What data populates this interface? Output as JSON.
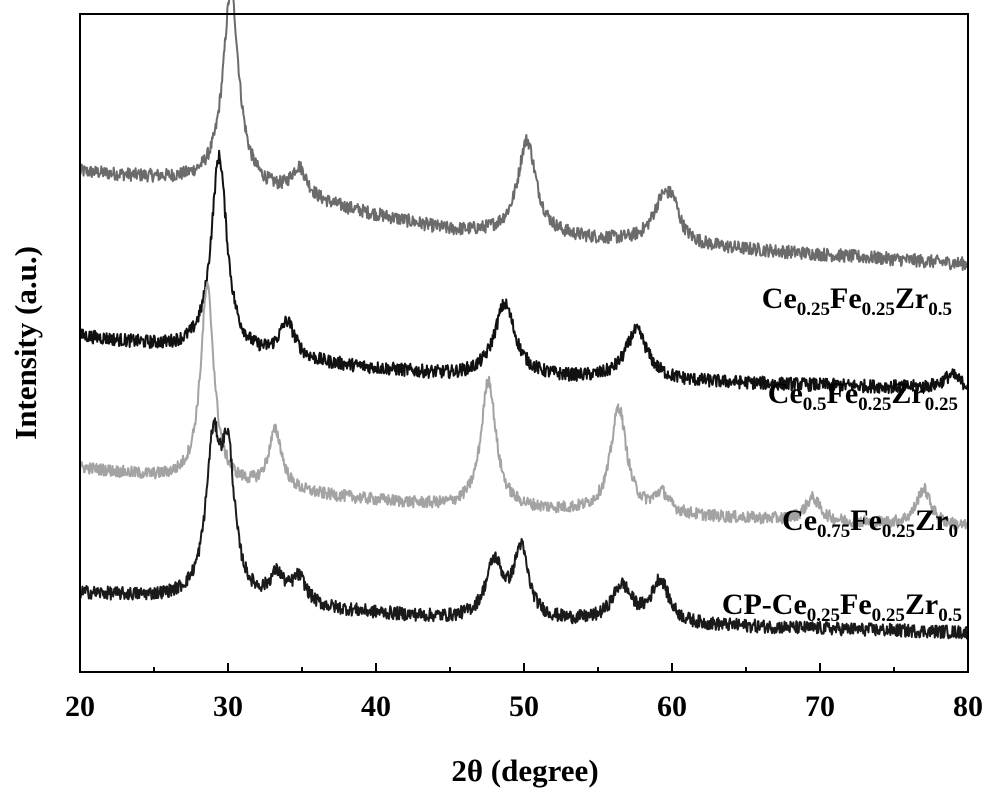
{
  "chart_data": {
    "type": "line",
    "title": "",
    "xlabel": "2θ (degree)",
    "ylabel": "Intensity (a.u.)",
    "xlim": [
      20,
      80
    ],
    "ylim": [
      0,
      100
    ],
    "x_ticks": [
      20,
      30,
      40,
      50,
      60,
      70,
      80
    ],
    "x_tick_labels": [
      "20",
      "30",
      "40",
      "50",
      "60",
      "70",
      "80"
    ],
    "y_tick_labels_shown": false,
    "grid": false,
    "legend": "inline labels at right of each curve",
    "series": [
      {
        "name": "Ce0.25Fe0.25Zr0.5",
        "label_parts": [
          {
            "text": "Ce"
          },
          {
            "text": "0.25",
            "sub": true
          },
          {
            "text": "Fe"
          },
          {
            "text": "0.25",
            "sub": true
          },
          {
            "text": "Zr"
          },
          {
            "text": "0.5",
            "sub": true
          }
        ],
        "color": "#6b6b6b",
        "baseline": [
          [
            20,
            76
          ],
          [
            30,
            74
          ],
          [
            45,
            67
          ],
          [
            80,
            62
          ]
        ],
        "peaks": [
          {
            "x": 30.2,
            "h": 29.5,
            "w": 0.65
          },
          {
            "x": 34.8,
            "h": 4.5,
            "w": 0.65
          },
          {
            "x": 50.2,
            "h": 14.5,
            "w": 0.75
          },
          {
            "x": 59.4,
            "h": 6.5,
            "w": 0.85
          },
          {
            "x": 60.1,
            "h": 3.5,
            "w": 0.5
          }
        ],
        "noise": 1.0
      },
      {
        "name": "Ce0.5Fe0.25Zr0.25",
        "label_parts": [
          {
            "text": "Ce"
          },
          {
            "text": "0.5",
            "sub": true
          },
          {
            "text": "Fe"
          },
          {
            "text": "0.25",
            "sub": true
          },
          {
            "text": "Zr"
          },
          {
            "text": "0.25",
            "sub": true
          }
        ],
        "color": "#111111",
        "baseline": [
          [
            20,
            51
          ],
          [
            30,
            48
          ],
          [
            45,
            45
          ],
          [
            80,
            43
          ]
        ],
        "peaks": [
          {
            "x": 29.4,
            "h": 30.0,
            "w": 0.65
          },
          {
            "x": 34.0,
            "h": 5.5,
            "w": 0.65
          },
          {
            "x": 48.7,
            "h": 11.0,
            "w": 0.85
          },
          {
            "x": 57.6,
            "h": 7.5,
            "w": 0.9
          },
          {
            "x": 78.9,
            "h": 2.0,
            "w": 0.7
          }
        ],
        "noise": 1.0
      },
      {
        "name": "Ce0.75Fe0.25Zr0",
        "label_parts": [
          {
            "text": "Ce"
          },
          {
            "text": "0.75",
            "sub": true
          },
          {
            "text": "Fe"
          },
          {
            "text": "0.25",
            "sub": true
          },
          {
            "text": "Zr"
          },
          {
            "text": "0",
            "sub": true
          }
        ],
        "color": "#a3a3a3",
        "baseline": [
          [
            20,
            31
          ],
          [
            30,
            28
          ],
          [
            45,
            25
          ],
          [
            80,
            22
          ]
        ],
        "peaks": [
          {
            "x": 28.6,
            "h": 30.0,
            "w": 0.55
          },
          {
            "x": 33.2,
            "h": 9.0,
            "w": 0.55
          },
          {
            "x": 47.6,
            "h": 19.5,
            "w": 0.6
          },
          {
            "x": 56.4,
            "h": 16.0,
            "w": 0.65
          },
          {
            "x": 59.3,
            "h": 3.0,
            "w": 0.6
          },
          {
            "x": 69.5,
            "h": 3.5,
            "w": 0.6
          },
          {
            "x": 77.0,
            "h": 5.5,
            "w": 0.6
          }
        ],
        "noise": 0.9
      },
      {
        "name": "CP-Ce0.25Fe0.25Zr0.5",
        "label_parts": [
          {
            "text": "CP-Ce"
          },
          {
            "text": "0.25",
            "sub": true
          },
          {
            "text": "Fe"
          },
          {
            "text": "0.25",
            "sub": true
          },
          {
            "text": "Zr"
          },
          {
            "text": "0.5",
            "sub": true
          }
        ],
        "color": "#1a1a1a",
        "baseline": [
          [
            20,
            12
          ],
          [
            30,
            10.5
          ],
          [
            45,
            8
          ],
          [
            80,
            6
          ]
        ],
        "peaks": [
          {
            "x": 29.0,
            "h": 22.0,
            "w": 0.6
          },
          {
            "x": 30.0,
            "h": 20.0,
            "w": 0.55
          },
          {
            "x": 33.3,
            "h": 4.0,
            "w": 0.6
          },
          {
            "x": 34.8,
            "h": 4.0,
            "w": 0.6
          },
          {
            "x": 48.0,
            "h": 8.5,
            "w": 0.7
          },
          {
            "x": 49.8,
            "h": 10.5,
            "w": 0.6
          },
          {
            "x": 56.6,
            "h": 5.5,
            "w": 0.8
          },
          {
            "x": 59.2,
            "h": 6.5,
            "w": 0.7
          }
        ],
        "noise": 1.0
      }
    ]
  }
}
